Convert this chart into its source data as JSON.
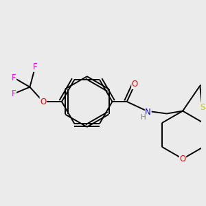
{
  "background_color": "#ebebeb",
  "line_color": "#000000",
  "atom_colors": {
    "O": "#ff0000",
    "N": "#0000cd",
    "S": "#cccc00",
    "F": "#ff00ff",
    "H": "#7a7a7a",
    "C": "#000000"
  },
  "lw": 1.4,
  "fontsize": 8.5
}
